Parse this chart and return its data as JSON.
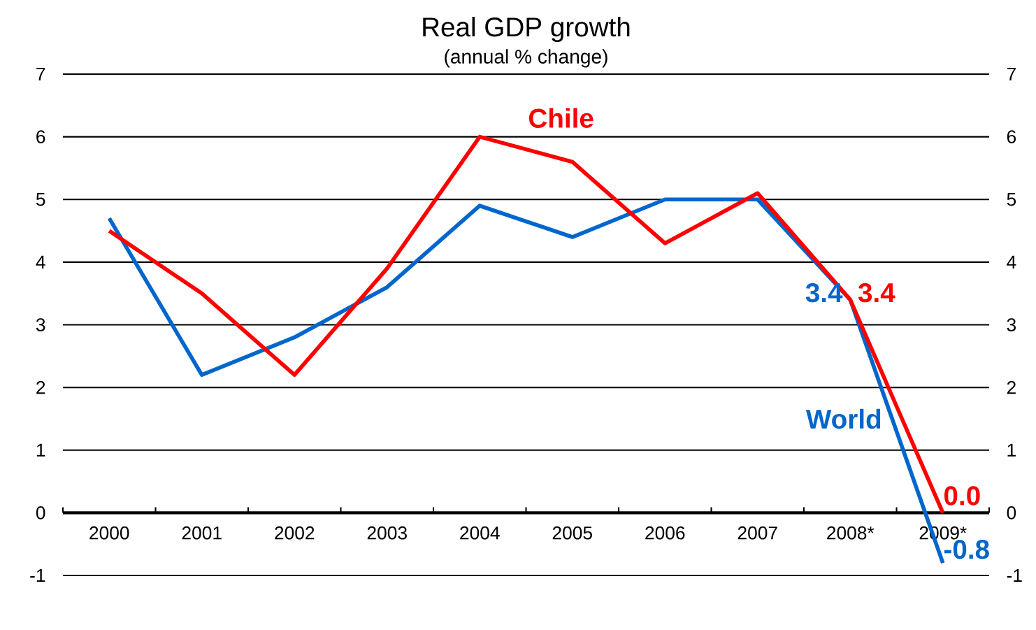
{
  "chart_data": {
    "type": "line",
    "title": "Real GDP growth",
    "subtitle": "(annual % change)",
    "categories": [
      "2000",
      "2001",
      "2002",
      "2003",
      "2004",
      "2005",
      "2006",
      "2007",
      "2008*",
      "2009*"
    ],
    "series": [
      {
        "name": "World",
        "color": "#0066cc",
        "values": [
          4.7,
          2.2,
          2.8,
          3.6,
          4.9,
          4.4,
          5.0,
          5.0,
          3.4,
          -0.8
        ],
        "value_labels": [
          null,
          null,
          null,
          null,
          null,
          null,
          null,
          null,
          "3.4",
          "-0.8"
        ]
      },
      {
        "name": "Chile",
        "color": "#ff0000",
        "values": [
          4.5,
          3.5,
          2.2,
          3.9,
          6.0,
          5.6,
          4.3,
          5.1,
          3.4,
          0.0
        ],
        "value_labels": [
          null,
          null,
          null,
          null,
          null,
          null,
          null,
          null,
          "3.4",
          "0.0"
        ]
      }
    ],
    "ylim": [
      -1,
      7
    ],
    "yticks": [
      -1,
      0,
      1,
      2,
      3,
      4,
      5,
      6,
      7
    ],
    "y2lim": [
      -1,
      7
    ],
    "y2ticks": [
      -1,
      0,
      1,
      2,
      3,
      4,
      5,
      6,
      7
    ],
    "grid": "y",
    "marker": "none",
    "line_style": "solid"
  }
}
